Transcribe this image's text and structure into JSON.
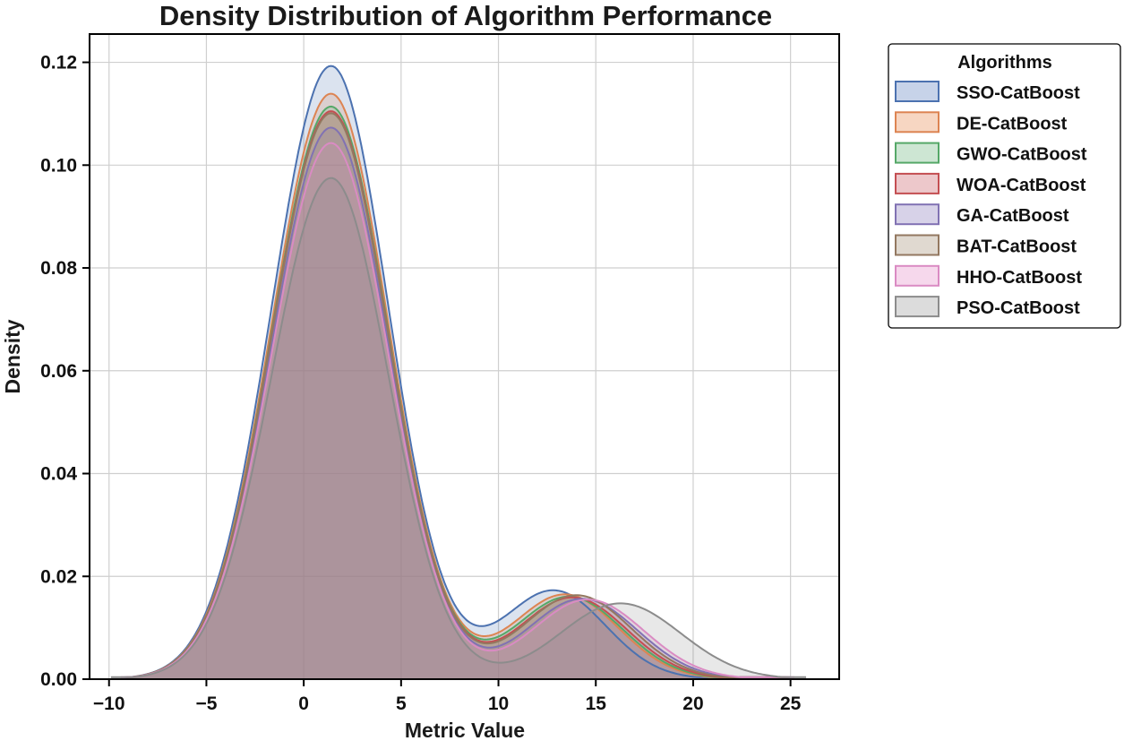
{
  "chart_data": {
    "type": "area",
    "title": "Density Distribution of Algorithm Performance",
    "xlabel": "Metric Value",
    "ylabel": "Density",
    "xlim": [
      -11.0,
      27.5
    ],
    "ylim": [
      0,
      0.1255
    ],
    "x_ticks": [
      -10,
      -5,
      0,
      5,
      10,
      15,
      20,
      25
    ],
    "x_tick_labels": [
      "−10",
      "−5",
      "0",
      "5",
      "10",
      "15",
      "20",
      "25"
    ],
    "y_ticks": [
      0.0,
      0.02,
      0.04,
      0.06,
      0.08,
      0.1,
      0.12
    ],
    "y_tick_labels": [
      "0.00",
      "0.02",
      "0.04",
      "0.06",
      "0.08",
      "0.10",
      "0.12"
    ],
    "grid": true,
    "legend": {
      "title": "Algorithms",
      "placement": "outside-right-top"
    },
    "series": [
      {
        "name": "SSO-CatBoost",
        "color": "#4c72b0",
        "fill": "#c7d3e9",
        "peak1": {
          "x": 1.4,
          "y": 0.1193
        },
        "valley": {
          "x": 9.8,
          "y": 0.0118
        },
        "peak2": {
          "x": 12.7,
          "y": 0.0183
        },
        "range": [
          -8.8,
          24.5
        ]
      },
      {
        "name": "DE-CatBoost",
        "color": "#dd8452",
        "fill": "#f7d6c2",
        "peak1": {
          "x": 1.4,
          "y": 0.1139
        },
        "valley": {
          "x": 10.2,
          "y": 0.0112
        },
        "peak2": {
          "x": 13.3,
          "y": 0.0173
        },
        "range": [
          -8.9,
          24.6
        ]
      },
      {
        "name": "GWO-CatBoost",
        "color": "#55a868",
        "fill": "#cde6d3",
        "peak1": {
          "x": 1.4,
          "y": 0.1114
        },
        "valley": {
          "x": 10.3,
          "y": 0.011
        },
        "peak2": {
          "x": 13.5,
          "y": 0.0168
        },
        "range": [
          -9.0,
          24.7
        ]
      },
      {
        "name": "WOA-CatBoost",
        "color": "#c44e52",
        "fill": "#edc8cb",
        "peak1": {
          "x": 1.4,
          "y": 0.1105
        },
        "valley": {
          "x": 10.4,
          "y": 0.0108
        },
        "peak2": {
          "x": 13.7,
          "y": 0.0166
        },
        "range": [
          -9.1,
          24.8
        ]
      },
      {
        "name": "GA-CatBoost",
        "color": "#8172b3",
        "fill": "#d7d2e8",
        "peak1": {
          "x": 1.4,
          "y": 0.1073
        },
        "valley": {
          "x": 10.6,
          "y": 0.0106
        },
        "peak2": {
          "x": 14.2,
          "y": 0.0162
        },
        "range": [
          -9.2,
          25.0
        ]
      },
      {
        "name": "BAT-CatBoost",
        "color": "#937860",
        "fill": "#e0d9d0",
        "peak1": {
          "x": 1.4,
          "y": 0.1101
        },
        "valley": {
          "x": 10.5,
          "y": 0.0107
        },
        "peak2": {
          "x": 13.9,
          "y": 0.017
        },
        "range": [
          -9.1,
          24.9
        ]
      },
      {
        "name": "HHO-CatBoost",
        "color": "#da8bc3",
        "fill": "#f6d8ec",
        "peak1": {
          "x": 1.4,
          "y": 0.1043
        },
        "valley": {
          "x": 10.8,
          "y": 0.0104
        },
        "peak2": {
          "x": 14.5,
          "y": 0.016
        },
        "range": [
          -9.4,
          25.2
        ]
      },
      {
        "name": "PSO-CatBoost",
        "color": "#8c8c8c",
        "fill": "#dcdcdc",
        "peak1": {
          "x": 1.4,
          "y": 0.0975
        },
        "valley": {
          "x": 11.2,
          "y": 0.0094
        },
        "peak2": {
          "x": 16.2,
          "y": 0.015
        },
        "range": [
          -9.9,
          25.8
        ]
      }
    ]
  }
}
